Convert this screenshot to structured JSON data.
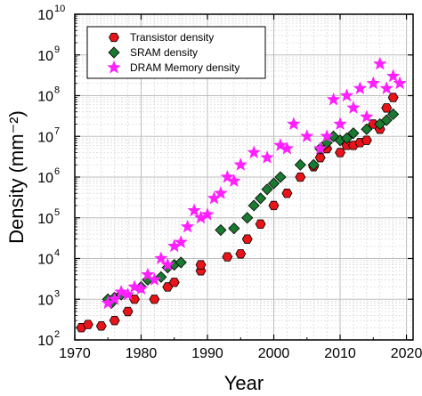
{
  "chart_data": {
    "type": "scatter",
    "title": "",
    "xlabel": "Year",
    "ylabel": "Density (mm⁻²)",
    "xlim": [
      1970,
      2021
    ],
    "ylim": [
      100,
      10000000000
    ],
    "yscale": "log",
    "x_ticks": [
      "1970",
      "1980",
      "1990",
      "2000",
      "2010",
      "2020"
    ],
    "y_ticks": [
      {
        "base": "10",
        "exp": "2"
      },
      {
        "base": "10",
        "exp": "3"
      },
      {
        "base": "10",
        "exp": "4"
      },
      {
        "base": "10",
        "exp": "5"
      },
      {
        "base": "10",
        "exp": "6"
      },
      {
        "base": "10",
        "exp": "7"
      },
      {
        "base": "10",
        "exp": "8"
      },
      {
        "base": "10",
        "exp": "9"
      },
      {
        "base": "10",
        "exp": "10"
      }
    ],
    "grid": true,
    "legend_position": "top-left",
    "series": [
      {
        "name": "Transistor density",
        "marker": "hexagon",
        "color": "#e8141a",
        "points": [
          {
            "x": 1971,
            "y": 200
          },
          {
            "x": 1972,
            "y": 240
          },
          {
            "x": 1974,
            "y": 220
          },
          {
            "x": 1976,
            "y": 300
          },
          {
            "x": 1978,
            "y": 500
          },
          {
            "x": 1979,
            "y": 1000
          },
          {
            "x": 1982,
            "y": 1000
          },
          {
            "x": 1984,
            "y": 2000
          },
          {
            "x": 1985,
            "y": 2600
          },
          {
            "x": 1989,
            "y": 5000
          },
          {
            "x": 1989,
            "y": 7000
          },
          {
            "x": 1993,
            "y": 11000
          },
          {
            "x": 1995,
            "y": 13000
          },
          {
            "x": 1996,
            "y": 30000
          },
          {
            "x": 1998,
            "y": 70000
          },
          {
            "x": 2000,
            "y": 200000
          },
          {
            "x": 2002,
            "y": 400000
          },
          {
            "x": 2004,
            "y": 1000000
          },
          {
            "x": 2006,
            "y": 1800000
          },
          {
            "x": 2007,
            "y": 3000000
          },
          {
            "x": 2008,
            "y": 5000000
          },
          {
            "x": 2010,
            "y": 4000000
          },
          {
            "x": 2011,
            "y": 6000000
          },
          {
            "x": 2012,
            "y": 6000000
          },
          {
            "x": 2013,
            "y": 7000000
          },
          {
            "x": 2014,
            "y": 8000000
          },
          {
            "x": 2015,
            "y": 20000000
          },
          {
            "x": 2016,
            "y": 15000000
          },
          {
            "x": 2017,
            "y": 50000000
          },
          {
            "x": 2018,
            "y": 90000000
          }
        ]
      },
      {
        "name": "SRAM density",
        "marker": "diamond",
        "color": "#1a7a30",
        "points": [
          {
            "x": 1975,
            "y": 1000
          },
          {
            "x": 1975.5,
            "y": 800
          },
          {
            "x": 1976,
            "y": 1100
          },
          {
            "x": 1977,
            "y": 1300
          },
          {
            "x": 1980,
            "y": 2000
          },
          {
            "x": 1981,
            "y": 3000
          },
          {
            "x": 1983,
            "y": 3500
          },
          {
            "x": 1984,
            "y": 6000
          },
          {
            "x": 1985,
            "y": 7000
          },
          {
            "x": 1986,
            "y": 8000
          },
          {
            "x": 1992,
            "y": 50000
          },
          {
            "x": 1994,
            "y": 55000
          },
          {
            "x": 1996,
            "y": 100000
          },
          {
            "x": 1997,
            "y": 200000
          },
          {
            "x": 1998,
            "y": 300000
          },
          {
            "x": 1999,
            "y": 500000
          },
          {
            "x": 2000,
            "y": 700000
          },
          {
            "x": 2001,
            "y": 1000000
          },
          {
            "x": 2004,
            "y": 2000000
          },
          {
            "x": 2006,
            "y": 2000000
          },
          {
            "x": 2007,
            "y": 5000000
          },
          {
            "x": 2008,
            "y": 7000000
          },
          {
            "x": 2009,
            "y": 10000000
          },
          {
            "x": 2010,
            "y": 8000000
          },
          {
            "x": 2011,
            "y": 9000000
          },
          {
            "x": 2012,
            "y": 12000000
          },
          {
            "x": 2014,
            "y": 15000000
          },
          {
            "x": 2016,
            "y": 20000000
          },
          {
            "x": 2017,
            "y": 25000000
          },
          {
            "x": 2018,
            "y": 35000000
          }
        ]
      },
      {
        "name": "DRAM Memory density",
        "marker": "star",
        "color": "#ff1fff",
        "points": [
          {
            "x": 1975,
            "y": 800
          },
          {
            "x": 1976,
            "y": 1000
          },
          {
            "x": 1977,
            "y": 1500
          },
          {
            "x": 1978,
            "y": 1300
          },
          {
            "x": 1979,
            "y": 2000
          },
          {
            "x": 1980,
            "y": 1800
          },
          {
            "x": 1981,
            "y": 4000
          },
          {
            "x": 1982,
            "y": 3000
          },
          {
            "x": 1983,
            "y": 10000
          },
          {
            "x": 1984,
            "y": 7000
          },
          {
            "x": 1985,
            "y": 20000
          },
          {
            "x": 1986,
            "y": 25000
          },
          {
            "x": 1987,
            "y": 60000
          },
          {
            "x": 1988,
            "y": 150000
          },
          {
            "x": 1989,
            "y": 100000
          },
          {
            "x": 1990,
            "y": 120000
          },
          {
            "x": 1991,
            "y": 300000
          },
          {
            "x": 1992,
            "y": 400000
          },
          {
            "x": 1993,
            "y": 1000000
          },
          {
            "x": 1994,
            "y": 800000
          },
          {
            "x": 1995,
            "y": 2000000
          },
          {
            "x": 1997,
            "y": 4000000
          },
          {
            "x": 1999,
            "y": 3000000
          },
          {
            "x": 2001,
            "y": 6000000
          },
          {
            "x": 2002,
            "y": 5000000
          },
          {
            "x": 2003,
            "y": 20000000
          },
          {
            "x": 2005,
            "y": 10000000
          },
          {
            "x": 2007,
            "y": 5000000
          },
          {
            "x": 2008,
            "y": 10000000
          },
          {
            "x": 2009,
            "y": 80000000
          },
          {
            "x": 2010,
            "y": 20000000
          },
          {
            "x": 2011,
            "y": 100000000
          },
          {
            "x": 2012,
            "y": 50000000
          },
          {
            "x": 2013,
            "y": 150000000
          },
          {
            "x": 2014,
            "y": 30000000
          },
          {
            "x": 2015,
            "y": 200000000
          },
          {
            "x": 2016,
            "y": 600000000
          },
          {
            "x": 2017,
            "y": 150000000
          },
          {
            "x": 2018,
            "y": 300000000
          },
          {
            "x": 2019,
            "y": 200000000
          }
        ]
      }
    ]
  }
}
